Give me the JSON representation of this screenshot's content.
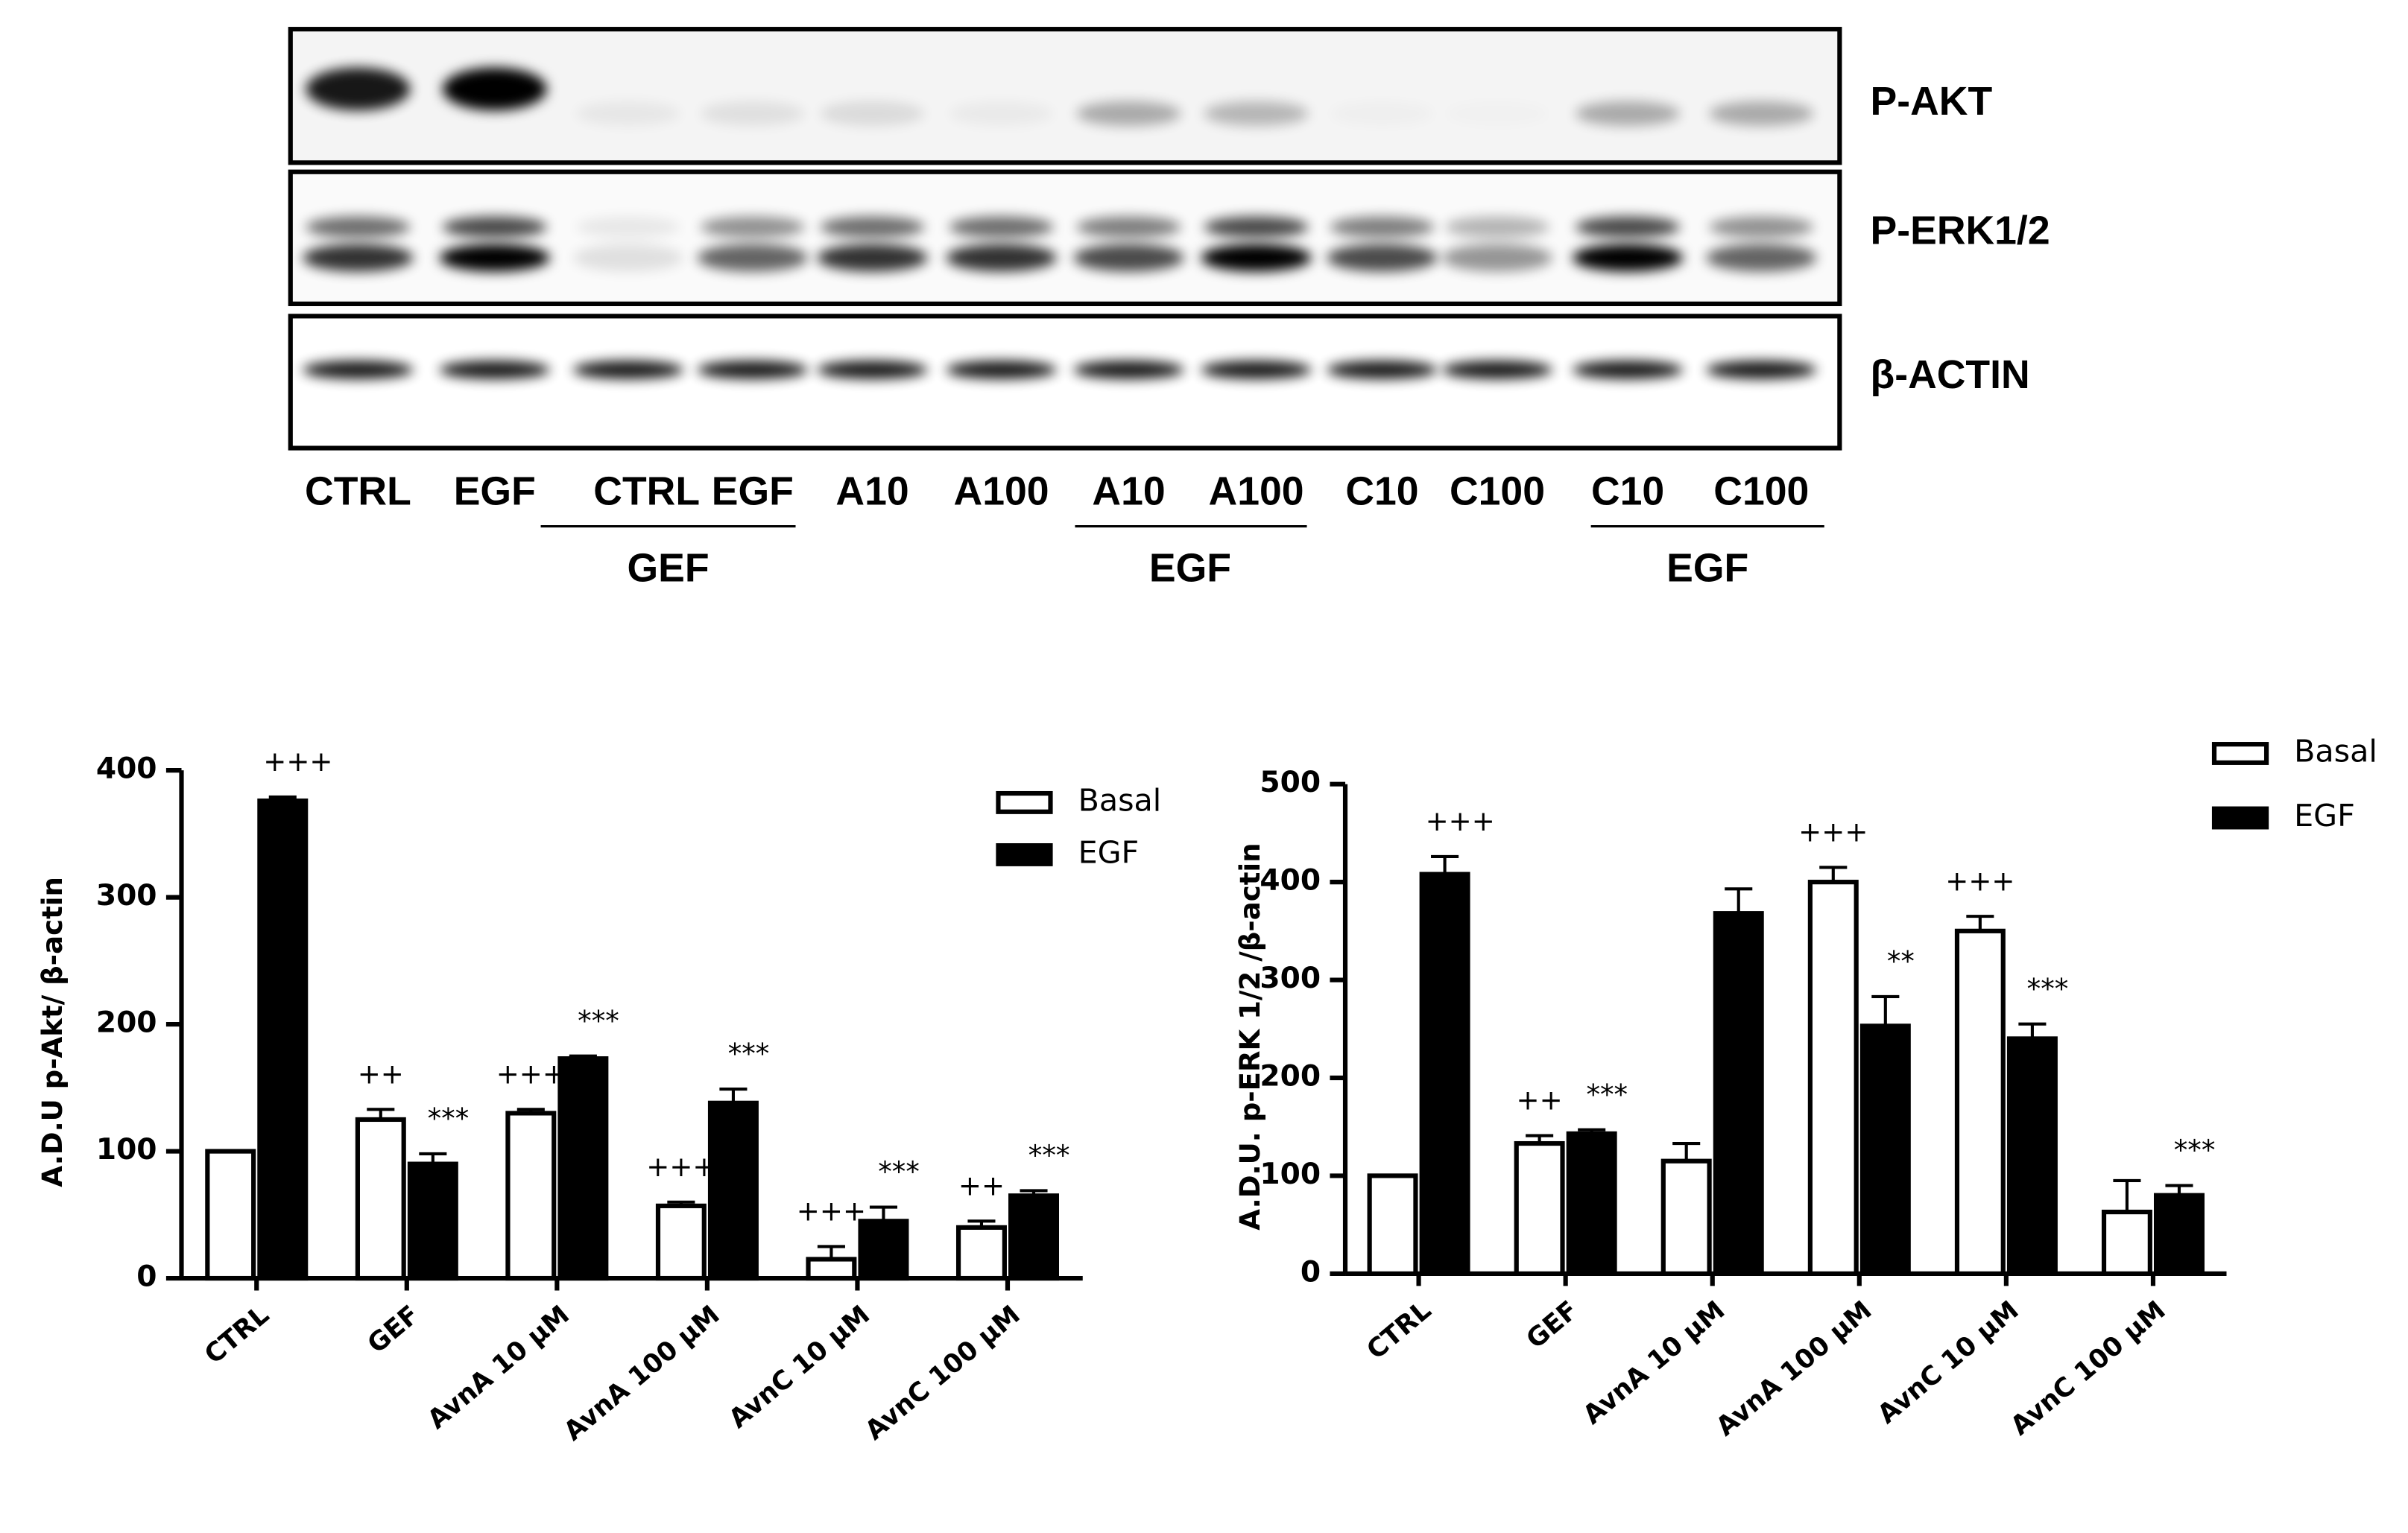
{
  "blot": {
    "bands": [
      "P-AKT",
      "P-ERK1/2",
      "β-ACTIN"
    ],
    "lanes": [
      "CTRL",
      "EGF",
      "CTRL",
      "EGF",
      "A10",
      "A100",
      "A10",
      "A100",
      "C10",
      "C100",
      "C10",
      "C100"
    ],
    "groups": [
      "GEF",
      "EGF",
      "EGF"
    ]
  },
  "chart_data": [
    {
      "type": "bar",
      "y_label": "A.D.U p-Akt/ β-actin",
      "categories": [
        "CTRL",
        "GEF",
        "AvnA 10 μM",
        "AvnA 100 μM",
        "AvnC 10 μM",
        "AvnC 100 μM"
      ],
      "series": [
        {
          "name": "Basal",
          "color": "#ffffff",
          "values": [
            100,
            125,
            130,
            57,
            15,
            40
          ],
          "errors": [
            0,
            8,
            3,
            3,
            10,
            5
          ],
          "annotations": [
            null,
            "++",
            "+++",
            "+++",
            "+++",
            "++"
          ]
        },
        {
          "name": "EGF",
          "color": "#000000",
          "values": [
            376,
            90,
            173,
            138,
            45,
            65
          ],
          "errors": [
            3,
            8,
            2,
            11,
            11,
            4
          ],
          "annotations": [
            "+++",
            "***",
            "***",
            "***",
            "***",
            "***"
          ]
        }
      ],
      "ylim": [
        0,
        400
      ],
      "yticks": [
        0,
        100,
        200,
        300,
        400
      ],
      "legend": "upper right"
    },
    {
      "type": "bar",
      "y_label": "A.D.U. p-ERK 1/2 /β-actin",
      "categories": [
        "CTRL",
        "GEF",
        "AvnA 10 μM",
        "AvnA 100 μM",
        "AvnC 10 μM",
        "AvnC 100 μM"
      ],
      "series": [
        {
          "name": "Basal",
          "color": "#ffffff",
          "values": [
            100,
            133,
            115,
            400,
            350,
            63
          ],
          "errors": [
            0,
            8,
            18,
            15,
            15,
            32
          ],
          "annotations": [
            null,
            "++",
            null,
            "+++",
            "+++",
            null
          ]
        },
        {
          "name": "EGF",
          "color": "#000000",
          "values": [
            408,
            143,
            368,
            253,
            240,
            80
          ],
          "errors": [
            18,
            4,
            25,
            30,
            15,
            10
          ],
          "annotations": [
            "+++",
            "***",
            null,
            "**",
            "***",
            "***"
          ]
        }
      ],
      "ylim": [
        0,
        500
      ],
      "yticks": [
        0,
        100,
        200,
        300,
        400,
        500
      ],
      "legend": "upper right"
    }
  ]
}
